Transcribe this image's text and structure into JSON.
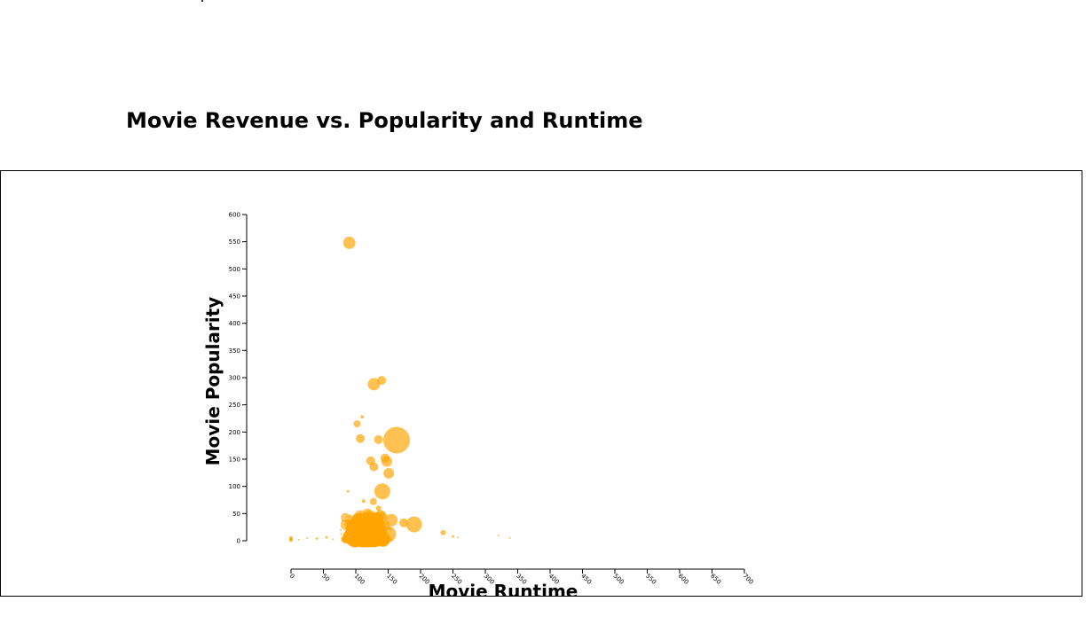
{
  "page": {
    "title": "Movie Revenue vs. Popularity and Runtime"
  },
  "colors": {
    "bubble": "#ffa500",
    "axis": "#000000",
    "frame": "#000000"
  },
  "chart_data": {
    "type": "scatter",
    "encoding": "bubble size = revenue",
    "xlabel": "Movie Runtime",
    "ylabel": "Movie Popularity",
    "xlim": [
      0,
      700
    ],
    "ylim": [
      0,
      600
    ],
    "xticks": [
      "0",
      "50",
      "100",
      "150",
      "200",
      "250",
      "300",
      "350",
      "400",
      "450",
      "500",
      "550",
      "600",
      "650",
      "700"
    ],
    "yticks": [
      "0",
      "50",
      "100",
      "150",
      "200",
      "250",
      "300",
      "350",
      "400",
      "450",
      "500",
      "550",
      "600"
    ],
    "grid": false,
    "legend": "none",
    "points": [
      {
        "x": 90,
        "y": 548,
        "r": 7
      },
      {
        "x": 128,
        "y": 288,
        "r": 7
      },
      {
        "x": 140,
        "y": 295,
        "r": 5
      },
      {
        "x": 163,
        "y": 185,
        "r": 15
      },
      {
        "x": 102,
        "y": 215,
        "r": 4
      },
      {
        "x": 110,
        "y": 228,
        "r": 2
      },
      {
        "x": 107,
        "y": 188,
        "r": 5
      },
      {
        "x": 135,
        "y": 186,
        "r": 5
      },
      {
        "x": 145,
        "y": 152,
        "r": 5
      },
      {
        "x": 148,
        "y": 146,
        "r": 6
      },
      {
        "x": 123,
        "y": 147,
        "r": 5
      },
      {
        "x": 128,
        "y": 136,
        "r": 5
      },
      {
        "x": 151,
        "y": 124,
        "r": 6
      },
      {
        "x": 141,
        "y": 91,
        "r": 9
      },
      {
        "x": 88,
        "y": 91,
        "r": 1.5
      },
      {
        "x": 112,
        "y": 73,
        "r": 2
      },
      {
        "x": 127,
        "y": 72,
        "r": 4
      },
      {
        "x": 135,
        "y": 60,
        "r": 3
      },
      {
        "x": 118,
        "y": 51,
        "r": 5
      },
      {
        "x": 138,
        "y": 47,
        "r": 6
      },
      {
        "x": 155,
        "y": 38,
        "r": 7
      },
      {
        "x": 190,
        "y": 30,
        "r": 9
      },
      {
        "x": 174,
        "y": 33,
        "r": 5
      },
      {
        "x": 150,
        "y": 12,
        "r": 9
      },
      {
        "x": 127,
        "y": 4,
        "r": 5
      },
      {
        "x": 235,
        "y": 15,
        "r": 3
      },
      {
        "x": 250,
        "y": 8,
        "r": 1.5
      },
      {
        "x": 258,
        "y": 6,
        "r": 1
      },
      {
        "x": 320,
        "y": 10,
        "r": 1
      },
      {
        "x": 338,
        "y": 5,
        "r": 1
      },
      {
        "x": 0,
        "y": 5,
        "r": 2
      },
      {
        "x": 0,
        "y": 3,
        "r": 2
      },
      {
        "x": 0,
        "y": 1,
        "r": 2
      },
      {
        "x": 12,
        "y": 2,
        "r": 1
      },
      {
        "x": 25,
        "y": 5,
        "r": 1
      },
      {
        "x": 40,
        "y": 4,
        "r": 1.5
      },
      {
        "x": 55,
        "y": 6,
        "r": 1.5
      },
      {
        "x": 65,
        "y": 3,
        "r": 1
      }
    ],
    "dense_cluster": {
      "x_range": [
        60,
        220
      ],
      "x_center": 115,
      "y_range": [
        0,
        45
      ],
      "count": 1400
    }
  }
}
